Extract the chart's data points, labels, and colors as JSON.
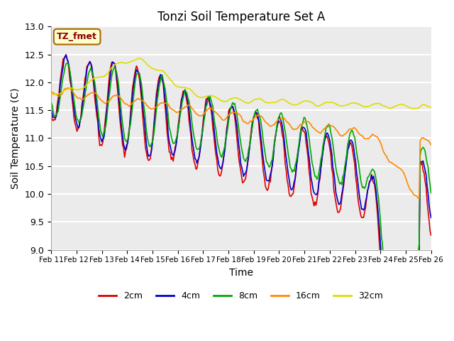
{
  "title": "Tonzi Soil Temperature Set A",
  "xlabel": "Time",
  "ylabel": "Soil Temperature (C)",
  "ylim": [
    9.0,
    13.0
  ],
  "yticks": [
    9.0,
    9.5,
    10.0,
    10.5,
    11.0,
    11.5,
    12.0,
    12.5,
    13.0
  ],
  "figure_bg": "#ffffff",
  "plot_bg_color": "#ebebeb",
  "label_box_text": "TZ_fmet",
  "label_box_color": "#ffffcc",
  "label_box_border": "#aa6600",
  "legend_labels": [
    "2cm",
    "4cm",
    "8cm",
    "16cm",
    "32cm"
  ],
  "line_colors": [
    "#dd0000",
    "#0000cc",
    "#00aa00",
    "#ff8800",
    "#dddd00"
  ],
  "line_widths": [
    1.2,
    1.2,
    1.2,
    1.2,
    1.2
  ],
  "x_tick_labels": [
    "Feb 11",
    "Feb 12",
    "Feb 13",
    "Feb 14",
    "Feb 15",
    "Feb 16",
    "Feb 17",
    "Feb 18",
    "Feb 19",
    "Feb 20",
    "Feb 21",
    "Feb 22",
    "Feb 23",
    "Feb 24",
    "Feb 25",
    "Feb 26"
  ],
  "n_days": 16
}
